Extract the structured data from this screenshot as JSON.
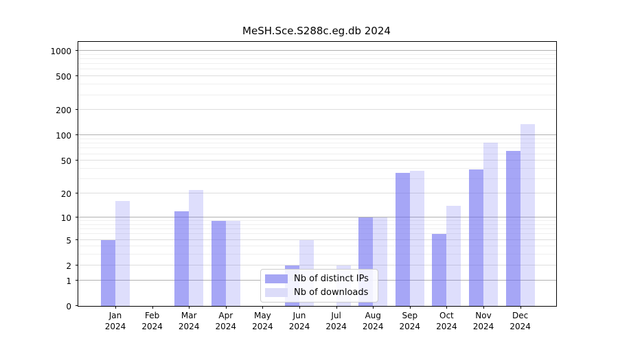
{
  "title": "MeSH.Sce.S288c.eg.db 2024",
  "legend": {
    "items": [
      {
        "label": "Nb of distinct IPs",
        "swatch_color": "#a6a6f4"
      },
      {
        "label": "Nb of downloads",
        "swatch_color": "#dcdcf9"
      }
    ]
  },
  "colors": {
    "bar_base": "#6a6af0",
    "ips_fill": "rgba(106,106,240,0.60)",
    "downloads_fill": "rgba(106,106,240,0.22)",
    "grid_strong": "#b0b0b0",
    "grid_mid": "#dddddd",
    "grid_faint": "#efefef",
    "spine": "#000000"
  },
  "chart_data": {
    "type": "bar",
    "title": "MeSH.Sce.S288c.eg.db 2024",
    "categories": [
      "Jan",
      "Feb",
      "Mar",
      "Apr",
      "May",
      "Jun",
      "Jul",
      "Aug",
      "Sep",
      "Oct",
      "Nov",
      "Dec"
    ],
    "x_year": "2024",
    "series": [
      {
        "name": "Nb of distinct IPs",
        "fill": "rgba(106,106,240,0.60)",
        "values": [
          5,
          0,
          12,
          9,
          0,
          2,
          0,
          10,
          36,
          6,
          39,
          66
        ]
      },
      {
        "name": "Nb of downloads",
        "fill": "rgba(106,106,240,0.22)",
        "values": [
          16,
          0,
          22,
          9,
          0,
          5,
          2,
          10,
          38,
          14,
          82,
          136
        ]
      }
    ],
    "yscale": "log1p",
    "ylim": [
      0,
      1270
    ],
    "y_ticks": [
      0,
      1,
      2,
      5,
      10,
      20,
      50,
      100,
      200,
      500,
      1000
    ],
    "grid": "horizontal",
    "legend_position": "lower-center"
  }
}
